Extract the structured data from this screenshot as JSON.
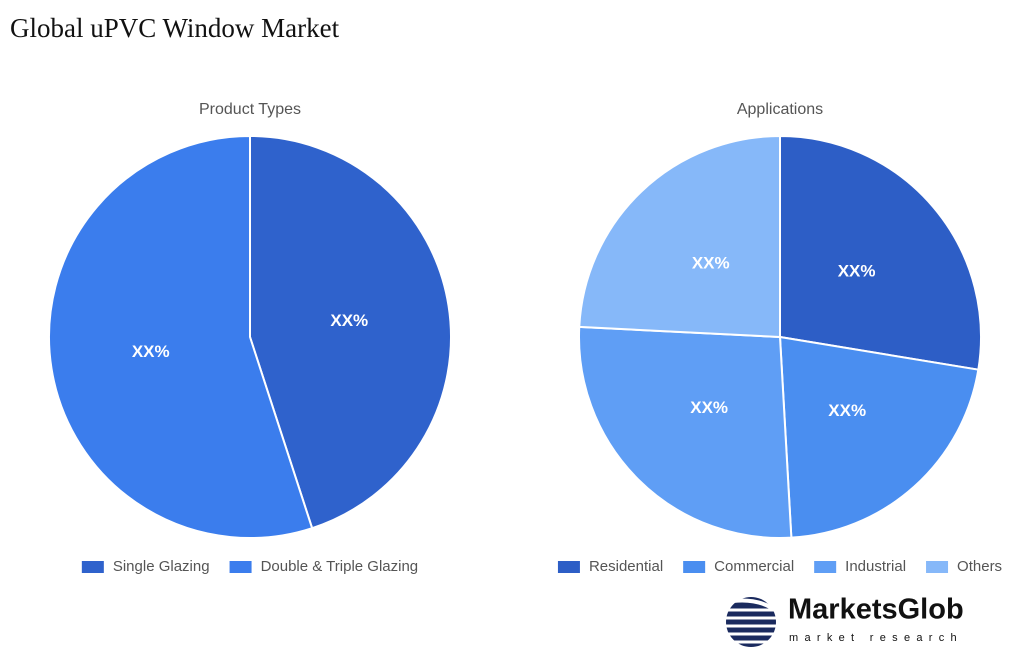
{
  "title": "Global uPVC Window Market",
  "chart_data": [
    {
      "type": "pie",
      "title": "Product Types",
      "categories": [
        "Single Glazing",
        "Double & Triple Glazing"
      ],
      "values": [
        45,
        55
      ],
      "value_labels": [
        "XX%",
        "XX%"
      ],
      "colors": [
        "#2f62cc",
        "#3b7ded"
      ],
      "legend": "bottom"
    },
    {
      "type": "pie",
      "title": "Applications",
      "categories": [
        "Residential",
        "Commercial",
        "Industrial",
        "Others"
      ],
      "values": [
        27.6,
        21.5,
        26.7,
        24.2
      ],
      "value_labels": [
        "XX%",
        "XX%",
        "XX%",
        "XX%"
      ],
      "colors": [
        "#2d5ec6",
        "#4a8ef0",
        "#5f9ef5",
        "#86b8f9"
      ],
      "legend": "bottom"
    }
  ],
  "logo": {
    "name": "MarketsGlob",
    "tagline": "market research"
  }
}
